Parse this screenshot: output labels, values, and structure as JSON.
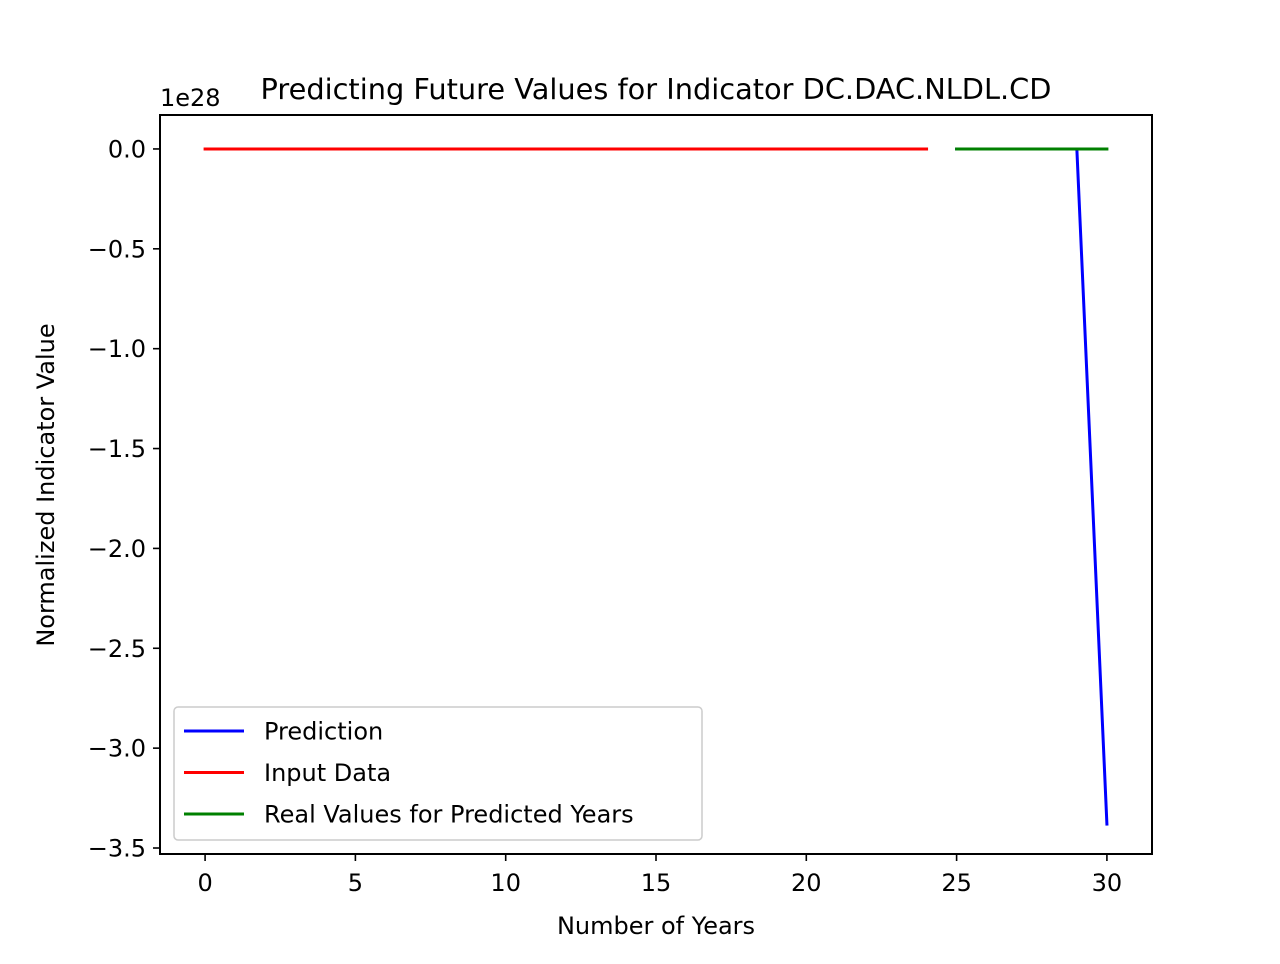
{
  "chart_data": {
    "type": "line",
    "title": "Predicting Future Values for Indicator DC.DAC.NLDL.CD",
    "xlabel": "Number of Years",
    "ylabel": "Normalized Indicator Value",
    "y_offset_label": "1e28",
    "y_scale": 1e+28,
    "xlim": [
      -1.5,
      31.5
    ],
    "ylim": [
      -3.53,
      0.17
    ],
    "x_ticks": [
      0,
      5,
      10,
      15,
      20,
      25,
      30
    ],
    "x_tick_labels": [
      "0",
      "5",
      "10",
      "15",
      "20",
      "25",
      "30"
    ],
    "y_ticks": [
      0.0,
      -0.5,
      -1.0,
      -1.5,
      -2.0,
      -2.5,
      -3.0,
      -3.5
    ],
    "y_tick_labels": [
      "0.0",
      "−0.5",
      "−1.0",
      "−1.5",
      "−2.0",
      "−2.5",
      "−3.0",
      "−3.5"
    ],
    "grid": false,
    "legend_position": "lower-left",
    "series": [
      {
        "name": "Prediction",
        "color": "#0000ff",
        "x": [
          25,
          26,
          27,
          28,
          29,
          30
        ],
        "y": [
          0,
          0,
          0,
          0,
          0,
          -3.38
        ]
      },
      {
        "name": "Input Data",
        "color": "#ff0000",
        "x": [
          0,
          1,
          2,
          3,
          4,
          5,
          6,
          7,
          8,
          9,
          10,
          11,
          12,
          13,
          14,
          15,
          16,
          17,
          18,
          19,
          20,
          21,
          22,
          23,
          24
        ],
        "y": [
          0,
          0,
          0,
          0,
          0,
          0,
          0,
          0,
          0,
          0,
          0,
          0,
          0,
          0,
          0,
          0,
          0,
          0,
          0,
          0,
          0,
          0,
          0,
          0,
          0
        ]
      },
      {
        "name": "Real Values for Predicted Years",
        "color": "#008000",
        "x": [
          25,
          26,
          27,
          28,
          29,
          30
        ],
        "y": [
          0,
          0,
          0,
          0,
          0,
          0
        ]
      }
    ]
  }
}
